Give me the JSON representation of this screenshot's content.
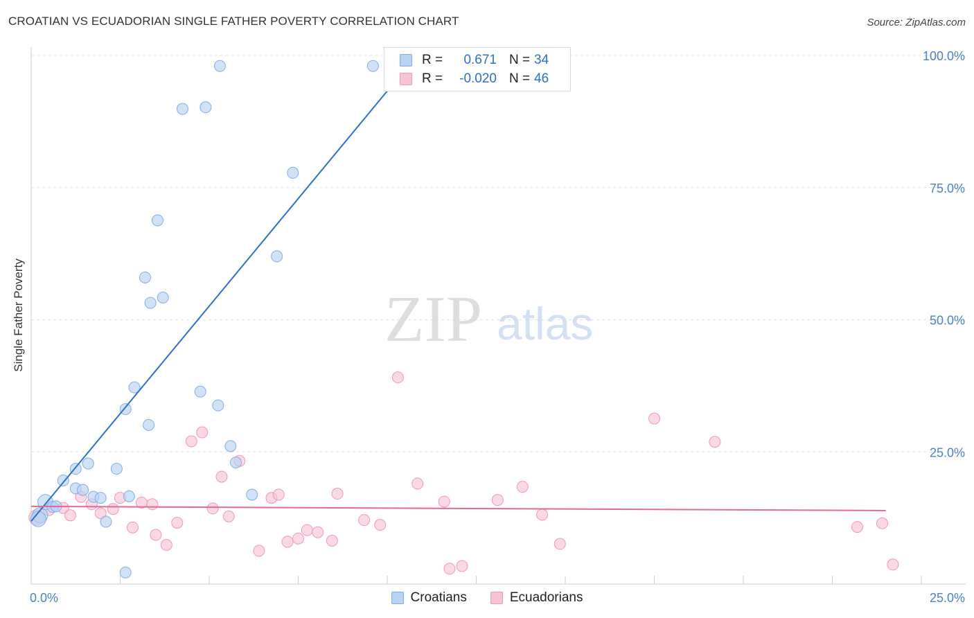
{
  "title": "CROATIAN VS ECUADORIAN SINGLE FATHER POVERTY CORRELATION CHART",
  "source": "Source: ZipAtlas.com",
  "watermark": {
    "zip": "ZIP",
    "atlas": "atlas"
  },
  "colors": {
    "croatians_fill": "#b8d2f2",
    "croatians_stroke": "#7faee8",
    "croatians_line": "#2c6fce",
    "ecuadorians_fill": "#f8c4d5",
    "ecuadorians_stroke": "#f098b6",
    "ecuadorians_line": "#e36a96",
    "tick_label": "#4a80cc",
    "grid": "#dde1e8"
  },
  "legend": {
    "rows": [
      {
        "r_label": "R =",
        "r_value": "0.671",
        "n_label": "N =",
        "n_value": "34"
      },
      {
        "r_label": "R =",
        "r_value": "-0.020",
        "n_label": "N =",
        "n_value": "46"
      }
    ]
  },
  "chart_data": {
    "type": "scatter",
    "title": "CROATIAN VS ECUADORIAN SINGLE FATHER POVERTY CORRELATION CHART",
    "xlabel": "",
    "ylabel": "Single Father Poverty",
    "xlim": [
      0,
      25
    ],
    "ylim": [
      0,
      100
    ],
    "x_tick_labels": [
      "0.0%",
      "25.0%"
    ],
    "y_ticks": [
      25,
      50,
      75,
      100
    ],
    "y_tick_labels": [
      "25.0%",
      "50.0%",
      "75.0%",
      "100.0%"
    ],
    "grid": true,
    "legend_position": "top-center",
    "series": [
      {
        "name": "Croatians",
        "r": 0.671,
        "n": 34,
        "trend": {
          "x": [
            0,
            10.25
          ],
          "y": [
            11.9,
            95.3
          ]
        },
        "points": [
          [
            0.25,
            13.0
          ],
          [
            0.4,
            15.5
          ],
          [
            0.6,
            14.6
          ],
          [
            0.7,
            14.7
          ],
          [
            0.9,
            19.6
          ],
          [
            1.25,
            18.1
          ],
          [
            1.25,
            21.8
          ],
          [
            1.45,
            17.8
          ],
          [
            1.6,
            22.8
          ],
          [
            1.75,
            16.5
          ],
          [
            1.95,
            16.3
          ],
          [
            2.1,
            11.8
          ],
          [
            2.4,
            21.8
          ],
          [
            2.65,
            33.1
          ],
          [
            2.75,
            16.6
          ],
          [
            2.9,
            37.2
          ],
          [
            3.3,
            30.1
          ],
          [
            3.2,
            58.0
          ],
          [
            3.35,
            53.2
          ],
          [
            3.55,
            68.8
          ],
          [
            3.7,
            54.2
          ],
          [
            4.25,
            89.9
          ],
          [
            4.75,
            36.4
          ],
          [
            4.9,
            90.2
          ],
          [
            5.25,
            33.8
          ],
          [
            5.3,
            98.0
          ],
          [
            5.6,
            26.1
          ],
          [
            5.75,
            23.0
          ],
          [
            6.2,
            16.9
          ],
          [
            6.9,
            62.0
          ],
          [
            7.35,
            77.8
          ],
          [
            9.6,
            98.0
          ],
          [
            2.65,
            2.2
          ],
          [
            0.2,
            12.3
          ]
        ]
      },
      {
        "name": "Ecuadorians",
        "r": -0.02,
        "n": 46,
        "trend": {
          "x": [
            0,
            24
          ],
          "y": [
            14.7,
            13.9
          ]
        },
        "points": [
          [
            0.15,
            12.6
          ],
          [
            0.5,
            14.0
          ],
          [
            0.9,
            14.4
          ],
          [
            1.1,
            13.0
          ],
          [
            1.4,
            16.5
          ],
          [
            1.7,
            15.1
          ],
          [
            1.95,
            13.4
          ],
          [
            2.3,
            14.2
          ],
          [
            2.5,
            16.3
          ],
          [
            2.85,
            10.7
          ],
          [
            3.1,
            15.4
          ],
          [
            3.4,
            15.1
          ],
          [
            3.5,
            9.3
          ],
          [
            3.8,
            7.4
          ],
          [
            4.1,
            11.6
          ],
          [
            4.5,
            27.0
          ],
          [
            4.8,
            28.7
          ],
          [
            5.1,
            14.3
          ],
          [
            5.35,
            20.3
          ],
          [
            5.55,
            12.8
          ],
          [
            5.85,
            23.3
          ],
          [
            6.4,
            6.3
          ],
          [
            6.75,
            16.3
          ],
          [
            6.95,
            16.9
          ],
          [
            7.2,
            8.0
          ],
          [
            7.5,
            8.6
          ],
          [
            7.75,
            10.2
          ],
          [
            8.05,
            9.8
          ],
          [
            8.45,
            8.2
          ],
          [
            8.6,
            17.1
          ],
          [
            9.35,
            12.1
          ],
          [
            9.8,
            11.2
          ],
          [
            10.3,
            39.1
          ],
          [
            10.85,
            19.0
          ],
          [
            11.6,
            15.6
          ],
          [
            11.75,
            2.9
          ],
          [
            12.1,
            3.4
          ],
          [
            13.1,
            15.9
          ],
          [
            13.8,
            18.4
          ],
          [
            14.35,
            13.1
          ],
          [
            14.85,
            7.6
          ],
          [
            17.5,
            31.3
          ],
          [
            19.2,
            26.9
          ],
          [
            23.2,
            10.8
          ],
          [
            23.9,
            11.5
          ],
          [
            24.2,
            3.7
          ]
        ]
      }
    ]
  }
}
